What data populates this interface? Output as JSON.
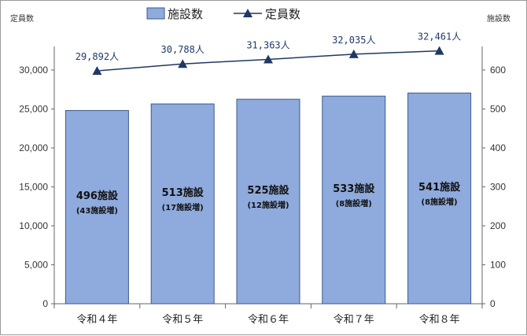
{
  "chart_data": {
    "type": "bar",
    "categories": [
      "令和４年",
      "令和５年",
      "令和６年",
      "令和７年",
      "令和８年"
    ],
    "y_left_label": "定員数",
    "y_right_label": "施設数",
    "y_left_lim": [
      0,
      30000
    ],
    "y_right_lim": [
      0,
      600
    ],
    "y_left_ticks": [
      "0",
      "5,000",
      "10,000",
      "15,000",
      "20,000",
      "25,000",
      "30,000"
    ],
    "y_right_ticks": [
      "0",
      "100",
      "200",
      "300",
      "400",
      "500",
      "600"
    ],
    "legend": {
      "bar": "施設数",
      "line": "定員数",
      "position": "top"
    },
    "grid": false,
    "series": [
      {
        "name": "施設数",
        "type": "bar",
        "axis": "right",
        "color": "#8faadc",
        "values": [
          496,
          513,
          525,
          533,
          541
        ],
        "labels": [
          "496施設",
          "513施設",
          "525施設",
          "533施設",
          "541施設"
        ],
        "sub_labels": [
          "(43施設増)",
          "(17施設増)",
          "(12施設増)",
          "(8施設増)",
          "(8施設増)"
        ]
      },
      {
        "name": "定員数",
        "type": "line",
        "axis": "left",
        "color": "#1f3864",
        "values": [
          29892,
          30788,
          31363,
          32035,
          32461
        ],
        "labels": [
          "29,892人",
          "30,788人",
          "31,363人",
          "32,035人",
          "32,461人"
        ]
      }
    ]
  }
}
